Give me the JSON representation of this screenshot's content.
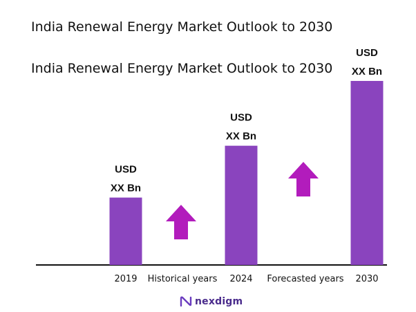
{
  "titles": [
    "India Renewal Energy Market Outlook to 2030",
    "India Renewal Energy Market Outlook to 2030"
  ],
  "colors": {
    "bar": "#8a44be",
    "arrow": "#b21cbc",
    "axis": "#111111",
    "logo": "#4a2b8c"
  },
  "chart_data": {
    "type": "bar",
    "categories": [
      "2019",
      "2024",
      "2030"
    ],
    "values": [
      26,
      46,
      71
    ],
    "ylim": [
      0,
      75
    ],
    "data_labels": [
      [
        "USD",
        "XX Bn"
      ],
      [
        "USD",
        "XX Bn"
      ],
      [
        "USD",
        "XX Bn"
      ]
    ],
    "annotations": [
      "Historical years",
      "Forecasted years"
    ],
    "grid": false,
    "legend": "none"
  },
  "logo": {
    "text": "nexdigm",
    "icon": "nexdigm-logo-icon"
  }
}
